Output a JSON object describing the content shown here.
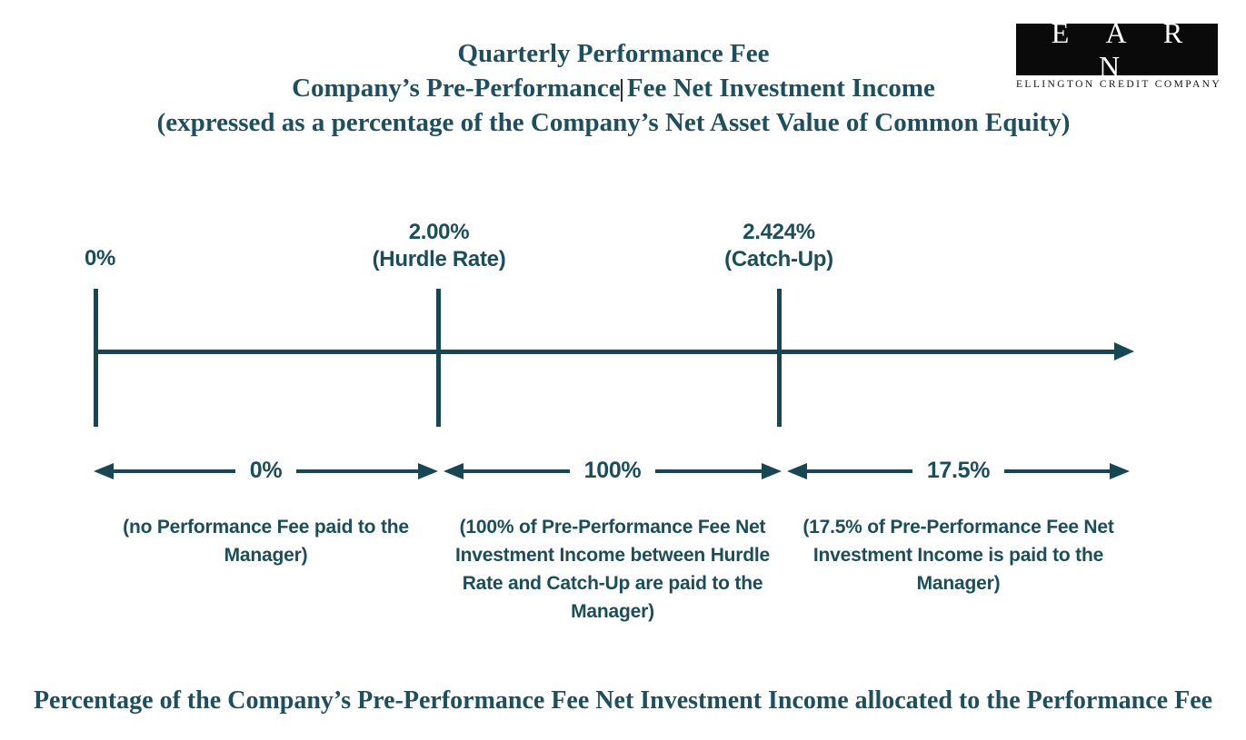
{
  "colors": {
    "diagram": "#164753",
    "sans_text": "#1B4D5A",
    "serif_text": "#1D4F5E",
    "logo_bg": "#0A0A0A",
    "logo_text": "#FFFFFF",
    "cursor": "#2E2E2E"
  },
  "header": {
    "title_line_1": "Quarterly Performance Fee",
    "title_line_2": "Company’s Pre-Performance Fee Net Investment Income",
    "title_line_3": "(expressed as a percentage of the Company’s Net Asset Value of Common Equity)"
  },
  "logo": {
    "acronym": "E A R N",
    "company_name": "ELLINGTON CREDIT COMPANY"
  },
  "axis": {
    "tick_labels": [
      {
        "value": "0%",
        "caption": ""
      },
      {
        "value": "2.00%",
        "caption": "(Hurdle Rate)"
      },
      {
        "value": "2.424%",
        "caption": "(Catch-Up)"
      }
    ]
  },
  "segments": [
    {
      "rate": "0%",
      "description": "(no Performance Fee paid to the Manager)"
    },
    {
      "rate": "100%",
      "description": "(100% of Pre-Performance Fee Net Investment Income between Hurdle Rate and Catch-Up are paid to the Manager)"
    },
    {
      "rate": "17.5%",
      "description": "(17.5% of Pre-Performance Fee Net Investment Income is paid to the Manager)"
    }
  ],
  "footer": {
    "caption": "Percentage of the Company’s Pre-Performance Fee Net Investment Income allocated to the Performance Fee"
  }
}
